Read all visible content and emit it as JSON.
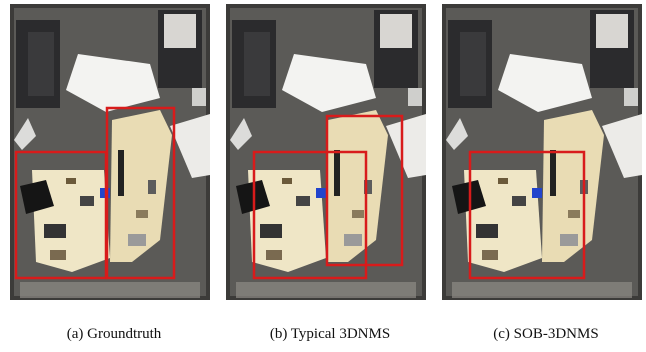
{
  "figure": {
    "panels": [
      {
        "caption": "(a) Groundtruth",
        "variant": "groundtruth"
      },
      {
        "caption": "(b) Typical 3DNMS",
        "variant": "typical"
      },
      {
        "caption": "(c) SOB-3DNMS",
        "variant": "sob"
      }
    ]
  },
  "colors": {
    "box": "#d81b1b",
    "floor": "#5b5a57",
    "bright_area": "#f3f3f1",
    "desk": "#e9dcb4",
    "dark_furniture": "#2b2b2d"
  }
}
